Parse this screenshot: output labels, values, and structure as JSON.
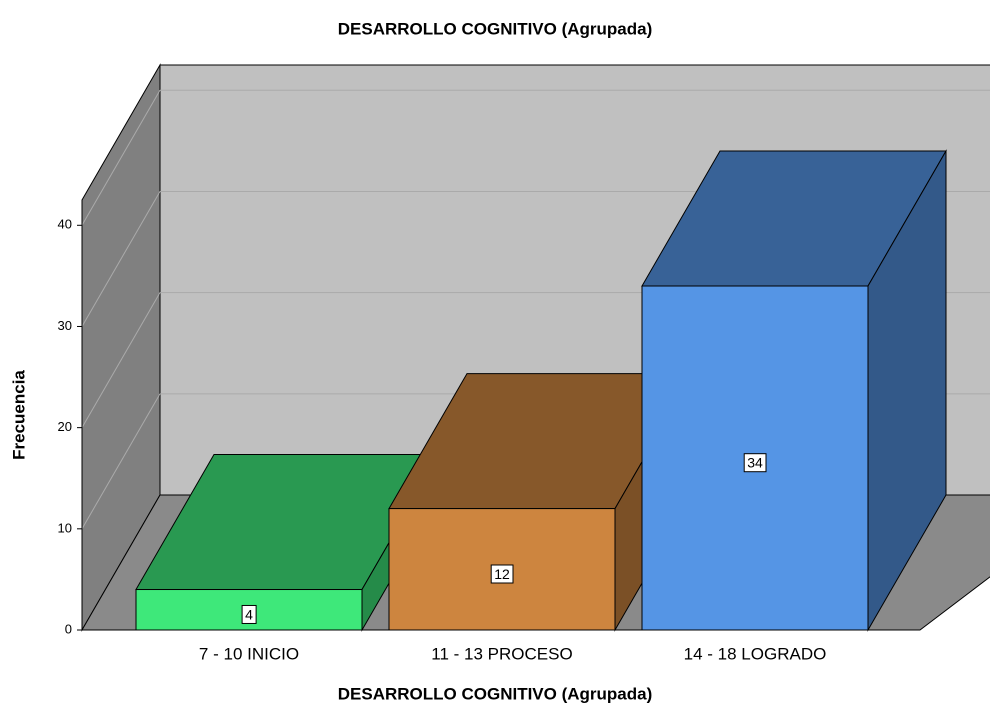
{
  "chart_data": {
    "type": "bar3d",
    "title": "DESARROLLO COGNITIVO (Agrupada)",
    "x_label": "DESARROLLO COGNITIVO (Agrupada)",
    "y_label": "Frecuencia",
    "categories": [
      "7 - 10 INICIO",
      "11 - 13 PROCESO",
      "14 - 18 LOGRADO"
    ],
    "values": [
      4,
      12,
      34
    ],
    "colors": [
      "#3ee87a",
      "#cd853f",
      "#5595e5"
    ],
    "ylim": [
      0,
      42.5
    ],
    "yticks": [
      0,
      10,
      20,
      30,
      40
    ],
    "grid": true
  }
}
